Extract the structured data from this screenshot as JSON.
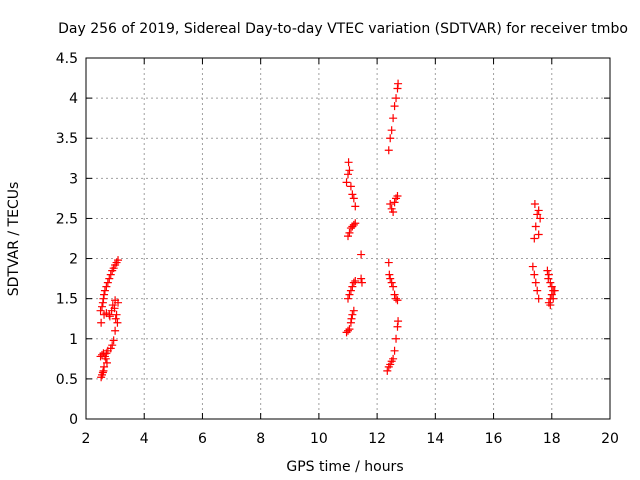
{
  "chart_data": {
    "type": "scatter",
    "title": "Day 256 of 2019, Sidereal Day-to-day VTEC variation (SDTVAR) for receiver tmbo",
    "xlabel": "GPS time / hours",
    "ylabel": "SDTVAR / TECUs",
    "xlim": [
      2,
      20
    ],
    "ylim": [
      0,
      4.5
    ],
    "xticks": [
      "2",
      "4",
      "6",
      "8",
      "10",
      "12",
      "14",
      "16",
      "18",
      "20"
    ],
    "yticks": [
      "0",
      "0.5",
      "1",
      "1.5",
      "2",
      "2.5",
      "3",
      "3.5",
      "4",
      "4.5"
    ],
    "grid": true,
    "marker": "+",
    "series": [
      {
        "name": "SDTVAR",
        "color": "#ff0000",
        "points": [
          [
            2.52,
            0.52
          ],
          [
            2.55,
            0.55
          ],
          [
            2.58,
            0.58
          ],
          [
            2.6,
            0.6
          ],
          [
            2.5,
            0.78
          ],
          [
            2.55,
            0.8
          ],
          [
            2.6,
            0.82
          ],
          [
            2.65,
            0.78
          ],
          [
            2.7,
            0.82
          ],
          [
            2.75,
            0.85
          ],
          [
            2.52,
            1.2
          ],
          [
            2.5,
            1.35
          ],
          [
            2.55,
            1.4
          ],
          [
            2.58,
            1.45
          ],
          [
            2.6,
            1.5
          ],
          [
            2.62,
            1.55
          ],
          [
            2.65,
            1.6
          ],
          [
            2.7,
            1.65
          ],
          [
            2.75,
            1.7
          ],
          [
            2.8,
            1.75
          ],
          [
            2.85,
            1.8
          ],
          [
            2.9,
            1.85
          ],
          [
            2.95,
            1.88
          ],
          [
            3.0,
            1.92
          ],
          [
            3.05,
            1.95
          ],
          [
            3.1,
            1.98
          ],
          [
            2.62,
            1.3
          ],
          [
            2.7,
            1.32
          ],
          [
            2.8,
            1.3
          ],
          [
            2.85,
            0.88
          ],
          [
            2.9,
            0.92
          ],
          [
            2.95,
            0.98
          ],
          [
            3.0,
            1.1
          ],
          [
            3.02,
            1.25
          ],
          [
            3.05,
            1.3
          ],
          [
            3.1,
            1.45
          ],
          [
            3.0,
            1.48
          ],
          [
            3.08,
            1.2
          ],
          [
            2.98,
            1.38
          ],
          [
            2.92,
            1.42
          ],
          [
            2.88,
            1.35
          ],
          [
            2.82,
            1.28
          ],
          [
            2.68,
            0.75
          ],
          [
            2.72,
            0.7
          ],
          [
            2.62,
            0.65
          ],
          [
            10.95,
            1.08
          ],
          [
            11.0,
            1.1
          ],
          [
            11.05,
            1.12
          ],
          [
            11.1,
            1.2
          ],
          [
            11.12,
            1.25
          ],
          [
            11.15,
            1.3
          ],
          [
            11.2,
            1.35
          ],
          [
            11.0,
            1.5
          ],
          [
            11.05,
            1.55
          ],
          [
            11.1,
            1.6
          ],
          [
            11.15,
            1.65
          ],
          [
            11.2,
            1.7
          ],
          [
            11.25,
            1.72
          ],
          [
            11.45,
            1.75
          ],
          [
            11.48,
            1.7
          ],
          [
            11.0,
            2.28
          ],
          [
            11.05,
            2.32
          ],
          [
            11.1,
            2.38
          ],
          [
            11.15,
            2.4
          ],
          [
            11.2,
            2.42
          ],
          [
            11.25,
            2.44
          ],
          [
            10.95,
            2.95
          ],
          [
            11.0,
            3.05
          ],
          [
            11.02,
            3.2
          ],
          [
            11.05,
            3.1
          ],
          [
            11.1,
            2.9
          ],
          [
            11.15,
            2.8
          ],
          [
            11.2,
            2.75
          ],
          [
            11.25,
            2.65
          ],
          [
            11.45,
            2.05
          ],
          [
            12.35,
            0.6
          ],
          [
            12.4,
            0.65
          ],
          [
            12.45,
            0.68
          ],
          [
            12.5,
            0.72
          ],
          [
            12.55,
            0.75
          ],
          [
            12.6,
            0.85
          ],
          [
            12.65,
            1.0
          ],
          [
            12.7,
            1.15
          ],
          [
            12.72,
            1.22
          ],
          [
            12.4,
            1.95
          ],
          [
            12.42,
            1.8
          ],
          [
            12.45,
            1.75
          ],
          [
            12.5,
            1.7
          ],
          [
            12.55,
            1.65
          ],
          [
            12.6,
            1.55
          ],
          [
            12.65,
            1.5
          ],
          [
            12.7,
            1.48
          ],
          [
            12.45,
            2.68
          ],
          [
            12.5,
            2.62
          ],
          [
            12.55,
            2.58
          ],
          [
            12.6,
            2.7
          ],
          [
            12.65,
            2.75
          ],
          [
            12.7,
            2.78
          ],
          [
            12.4,
            3.35
          ],
          [
            12.45,
            3.5
          ],
          [
            12.5,
            3.6
          ],
          [
            12.55,
            3.75
          ],
          [
            12.6,
            3.9
          ],
          [
            12.65,
            4.0
          ],
          [
            12.7,
            4.12
          ],
          [
            12.72,
            4.18
          ],
          [
            17.35,
            1.9
          ],
          [
            17.4,
            1.8
          ],
          [
            17.45,
            1.7
          ],
          [
            17.5,
            1.6
          ],
          [
            17.55,
            1.5
          ],
          [
            17.4,
            2.25
          ],
          [
            17.45,
            2.4
          ],
          [
            17.5,
            2.55
          ],
          [
            17.55,
            2.6
          ],
          [
            17.42,
            2.68
          ],
          [
            17.6,
            2.5
          ],
          [
            17.55,
            2.3
          ],
          [
            17.85,
            1.85
          ],
          [
            17.9,
            1.8
          ],
          [
            17.95,
            1.7
          ],
          [
            18.0,
            1.65
          ],
          [
            18.05,
            1.6
          ],
          [
            18.0,
            1.55
          ],
          [
            17.95,
            1.5
          ],
          [
            17.9,
            1.45
          ],
          [
            17.95,
            1.42
          ],
          [
            18.1,
            1.6
          ],
          [
            18.05,
            1.5
          ],
          [
            17.88,
            1.75
          ]
        ]
      }
    ]
  }
}
